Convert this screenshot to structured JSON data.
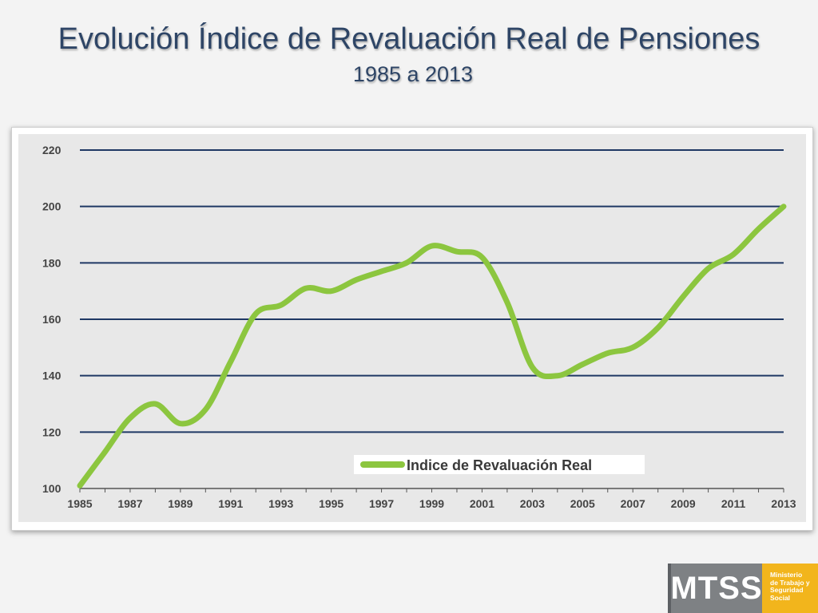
{
  "slide": {
    "title": "Evolución Índice de Revaluación Real de Pensiones",
    "subtitle": "1985 a 2013"
  },
  "logo": {
    "acronym": "MTSS",
    "lines": [
      "Ministerio",
      "de Trabajo y",
      "Seguridad",
      "Social"
    ]
  },
  "chart_data": {
    "type": "line",
    "title": "",
    "xlabel": "",
    "ylabel": "",
    "ylim": [
      100,
      220
    ],
    "yticks": [
      100,
      120,
      140,
      160,
      180,
      200,
      220
    ],
    "xlim": [
      1985,
      2013
    ],
    "xtick_labels": [
      "1985",
      "1987",
      "1989",
      "1991",
      "1993",
      "1995",
      "1997",
      "1999",
      "2001",
      "2003",
      "2005",
      "2007",
      "2009",
      "2011",
      "2013"
    ],
    "grid": "horizontal",
    "legend_position": "bottom-center",
    "series": [
      {
        "name": "Indice de Revaluación Real",
        "color": "#8cc63f",
        "x": [
          1985,
          1986,
          1987,
          1988,
          1989,
          1990,
          1991,
          1992,
          1993,
          1994,
          1995,
          1996,
          1997,
          1998,
          1999,
          2000,
          2001,
          2002,
          2003,
          2004,
          2005,
          2006,
          2007,
          2008,
          2009,
          2010,
          2011,
          2012,
          2013
        ],
        "values": [
          101,
          113,
          125,
          130,
          123,
          128,
          145,
          162,
          165,
          171,
          170,
          174,
          177,
          180,
          186,
          184,
          182,
          166,
          143,
          140,
          144,
          148,
          150,
          157,
          168,
          178,
          183,
          192,
          200
        ]
      }
    ]
  }
}
